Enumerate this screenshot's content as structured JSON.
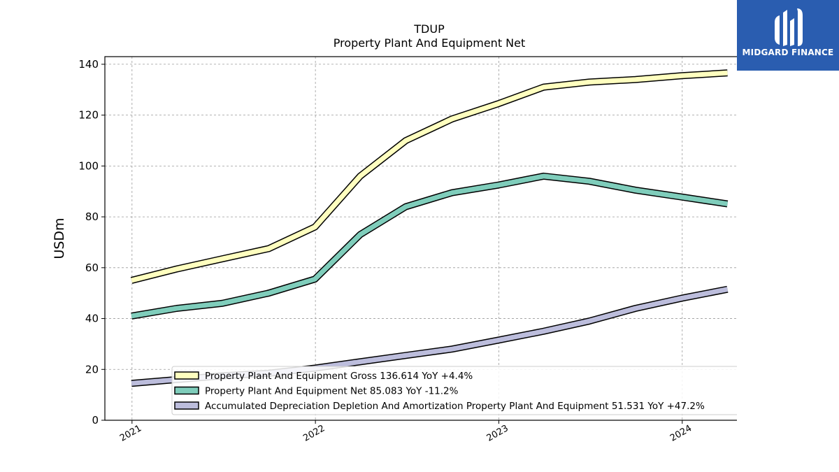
{
  "logo": {
    "text": "MIDGARD FINANCE",
    "bg_color": "#2a5db0"
  },
  "chart_data": {
    "type": "line",
    "title": "TDUP",
    "subtitle": "Property Plant And Equipment Net",
    "xlabel": "",
    "ylabel": "USDm",
    "ylim": [
      0,
      143
    ],
    "xlim": [
      "2020-11-08",
      "2024-05-25"
    ],
    "yticks": [
      0,
      20,
      40,
      60,
      80,
      100,
      120,
      140
    ],
    "xticks": [
      {
        "date": "2021-01-01",
        "label": "2021"
      },
      {
        "date": "2022-01-01",
        "label": "2022"
      },
      {
        "date": "2023-01-01",
        "label": "2023"
      },
      {
        "date": "2024-01-01",
        "label": "2024"
      }
    ],
    "grid": true,
    "legend_position": "bottom-right",
    "x": [
      "2020-12-31",
      "2021-03-31",
      "2021-06-30",
      "2021-09-30",
      "2021-12-31",
      "2022-03-31",
      "2022-06-30",
      "2022-09-30",
      "2022-12-31",
      "2023-03-31",
      "2023-06-30",
      "2023-09-30",
      "2023-12-31",
      "2024-03-31"
    ],
    "series": [
      {
        "name": "Property Plant And Equipment Gross",
        "legend_label": "Property Plant And Equipment Gross  136.614 YoY +4.4%",
        "color": "#ffffbf",
        "values": [
          55.0,
          59.5,
          63.5,
          67.5,
          76.0,
          96.0,
          110.0,
          118.5,
          124.5,
          131.0,
          133.0,
          134.0,
          135.5,
          136.6
        ]
      },
      {
        "name": "Property Plant And Equipment Net",
        "legend_label": "Property Plant And Equipment Net  85.083 YoY -11.2%",
        "color": "#7fcdbb",
        "values": [
          41.0,
          44.0,
          46.0,
          50.0,
          55.5,
          73.0,
          84.0,
          89.5,
          92.5,
          96.0,
          94.0,
          90.5,
          87.8,
          85.1
        ]
      },
      {
        "name": "Accumulated Depreciation Depletion And Amortization Property Plant And Equipment",
        "legend_label": "Accumulated Depreciation Depletion And Amortization Property Plant And Equipment  51.531 YoY +47.2%",
        "color": "#bcbddc",
        "values": [
          14.5,
          16.0,
          17.5,
          18.5,
          20.5,
          23.0,
          25.5,
          28.0,
          31.5,
          35.0,
          39.0,
          44.0,
          48.0,
          51.5
        ]
      }
    ]
  }
}
